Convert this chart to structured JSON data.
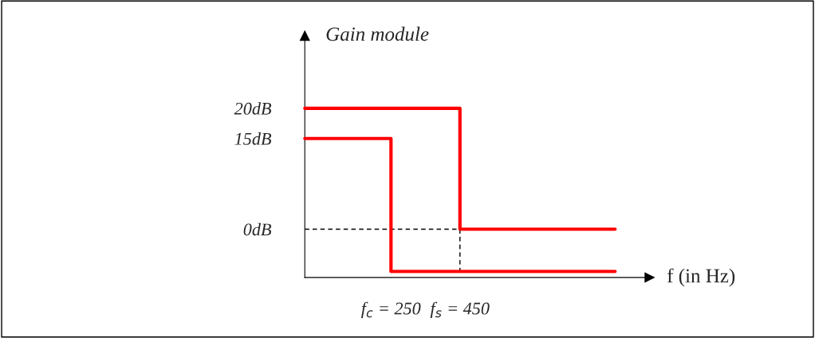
{
  "chart_data": {
    "type": "line",
    "ylabel": "Gain module",
    "xlabel": "f (in Hz)",
    "xlim": [
      0,
      1000
    ],
    "ylim": [
      -8,
      32
    ],
    "xticks": [
      {
        "value": 250,
        "label": "f$_{c}$ = 250"
      },
      {
        "value": 450,
        "label": "f$_{s}$ = 450"
      }
    ],
    "yticks": [
      {
        "value": 20,
        "label": "20dB"
      },
      {
        "value": 15,
        "label": "15dB"
      },
      {
        "value": 0,
        "label": "0dB"
      }
    ],
    "grid": false,
    "legend": false,
    "series": [
      {
        "color": "#ff0000",
        "x": [
          0,
          450,
          450,
          900
        ],
        "values": [
          20,
          20,
          0,
          0
        ]
      },
      {
        "color": "#ff0000",
        "x": [
          0,
          250,
          250,
          900
        ],
        "values": [
          15,
          15,
          -7,
          -7
        ]
      },
      {
        "line_style": "dashed",
        "color": "#000000",
        "x": [
          0,
          450,
          450
        ],
        "values": [
          0,
          0,
          -7
        ]
      }
    ]
  }
}
